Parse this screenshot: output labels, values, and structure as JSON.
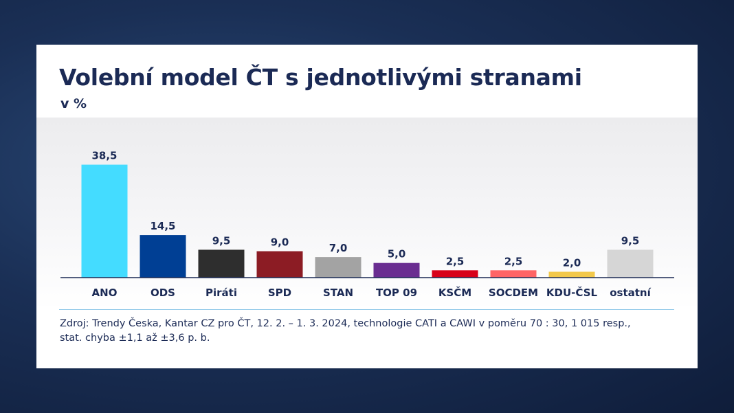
{
  "title": "Volební model ČT s jednotlivými stranami",
  "subtitle": "v %",
  "source_line1": "Zdroj: Trendy Česka, Kantar CZ pro ČT, 12. 2. – 1. 3. 2024, technologie CATI a CAWI v poměru 70 : 30, 1 015 resp.,",
  "source_line2": "stat. chyba ±1,1 až ±3,6 p. b.",
  "chart_data": {
    "type": "bar",
    "title": "Volební model ČT s jednotlivými stranami",
    "ylabel": "v %",
    "categories": [
      "ANO",
      "ODS",
      "Piráti",
      "SPD",
      "STAN",
      "TOP 09",
      "KSČM",
      "SOCDEM",
      "KDU-ČSL",
      "ostatní"
    ],
    "values": [
      38.5,
      14.5,
      9.5,
      9.0,
      7.0,
      5.0,
      2.5,
      2.5,
      2.0,
      9.5
    ],
    "value_labels": [
      "38,5",
      "14,5",
      "9,5",
      "9,0",
      "7,0",
      "5,0",
      "2,5",
      "2,5",
      "2,0",
      "9,5"
    ],
    "colors": [
      "#44dcff",
      "#003f94",
      "#2e2e2e",
      "#8c1c24",
      "#a3a3a3",
      "#6a2d91",
      "#d8001a",
      "#ff6466",
      "#f2c84b",
      "#d6d6d6"
    ],
    "ylim": [
      0,
      40
    ],
    "grid": false
  }
}
